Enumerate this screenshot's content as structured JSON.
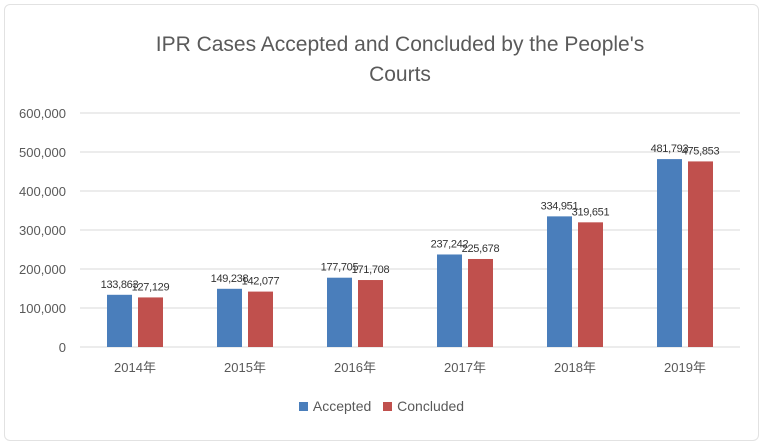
{
  "chart_data": {
    "type": "bar",
    "title": "IPR Cases Accepted and Concluded by the People's",
    "title_line2": "Courts",
    "categories": [
      "2014年",
      "2015年",
      "2016年",
      "2017年",
      "2018年",
      "2019年"
    ],
    "series": [
      {
        "name": "Accepted",
        "color": "#4a7ebb",
        "values": [
          133863,
          149238,
          177705,
          237242,
          334951,
          481793
        ],
        "labels": [
          "133,863",
          "149,238",
          "177,705",
          "237,242",
          "334,951",
          "481,793"
        ]
      },
      {
        "name": "Concluded",
        "color": "#c0504d",
        "values": [
          127129,
          142077,
          171708,
          225678,
          319651,
          475853
        ],
        "labels": [
          "127,129",
          "142,077",
          "171,708",
          "225,678",
          "319,651",
          "475,853"
        ]
      }
    ],
    "ylim": [
      0,
      600000
    ],
    "yticks": [
      0,
      100000,
      200000,
      300000,
      400000,
      500000,
      600000
    ],
    "ytick_labels": [
      "0",
      "100,000",
      "200,000",
      "300,000",
      "400,000",
      "500,000",
      "600,000"
    ],
    "grid": true,
    "gridline_color": "#d9d9d9",
    "legend_position": "bottom"
  }
}
